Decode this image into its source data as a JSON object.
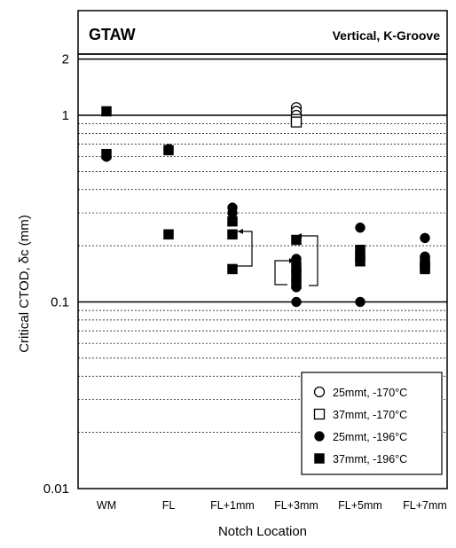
{
  "chart_data": {
    "type": "scatter",
    "title": "GTAW",
    "subtitle": "Vertical, K-Groove",
    "xlabel": "Notch Location",
    "ylabel": "Critical CTOD, δc  (mm)",
    "y_scale": "log",
    "ylim": [
      0.01,
      2
    ],
    "y_tick_labels": [
      "0.01",
      "0.1",
      "1",
      "2"
    ],
    "grid": "horizontal minor and major",
    "legend_position": "bottom-right",
    "categories": [
      "WM",
      "FL",
      "FL+1mm",
      "FL+3mm",
      "FL+5mm",
      "FL+7mm"
    ],
    "series": [
      {
        "name": "25mmt, -170°C",
        "marker": "open-circle",
        "points": [
          {
            "x": "FL+3mm",
            "y": 1.1
          },
          {
            "x": "FL+3mm",
            "y": 1.05
          },
          {
            "x": "FL+3mm",
            "y": 1.0
          }
        ]
      },
      {
        "name": "37mmt, -170°C",
        "marker": "open-square",
        "points": [
          {
            "x": "FL+3mm",
            "y": 0.95
          },
          {
            "x": "FL+3mm",
            "y": 0.92
          }
        ]
      },
      {
        "name": "25mmt, -196°C",
        "marker": "filled-circle",
        "points": [
          {
            "x": "WM",
            "y": 0.6
          },
          {
            "x": "FL",
            "y": 0.66
          },
          {
            "x": "FL+1mm",
            "y": 0.32
          },
          {
            "x": "FL+1mm",
            "y": 0.3
          },
          {
            "x": "FL+3mm",
            "y": 0.17
          },
          {
            "x": "FL+3mm",
            "y": 0.145
          },
          {
            "x": "FL+3mm",
            "y": 0.13
          },
          {
            "x": "FL+3mm",
            "y": 0.12
          },
          {
            "x": "FL+3mm",
            "y": 0.1
          },
          {
            "x": "FL+5mm",
            "y": 0.25
          },
          {
            "x": "FL+5mm",
            "y": 0.1
          },
          {
            "x": "FL+7mm",
            "y": 0.22
          },
          {
            "x": "FL+7mm",
            "y": 0.175
          },
          {
            "x": "FL+7mm",
            "y": 0.16
          }
        ]
      },
      {
        "name": "37mmt, -196°C",
        "marker": "filled-square",
        "points": [
          {
            "x": "WM",
            "y": 1.05
          },
          {
            "x": "WM",
            "y": 0.62
          },
          {
            "x": "FL",
            "y": 0.65
          },
          {
            "x": "FL",
            "y": 0.23
          },
          {
            "x": "FL+1mm",
            "y": 0.27
          },
          {
            "x": "FL+1mm",
            "y": 0.23
          },
          {
            "x": "FL+1mm",
            "y": 0.15
          },
          {
            "x": "FL+3mm",
            "y": 0.215
          },
          {
            "x": "FL+3mm",
            "y": 0.155
          },
          {
            "x": "FL+3mm",
            "y": 0.14
          },
          {
            "x": "FL+3mm",
            "y": 0.125
          },
          {
            "x": "FL+5mm",
            "y": 0.19
          },
          {
            "x": "FL+5mm",
            "y": 0.175
          },
          {
            "x": "FL+5mm",
            "y": 0.165
          },
          {
            "x": "FL+7mm",
            "y": 0.165
          },
          {
            "x": "FL+7mm",
            "y": 0.155
          },
          {
            "x": "FL+7mm",
            "y": 0.15
          }
        ]
      }
    ]
  }
}
